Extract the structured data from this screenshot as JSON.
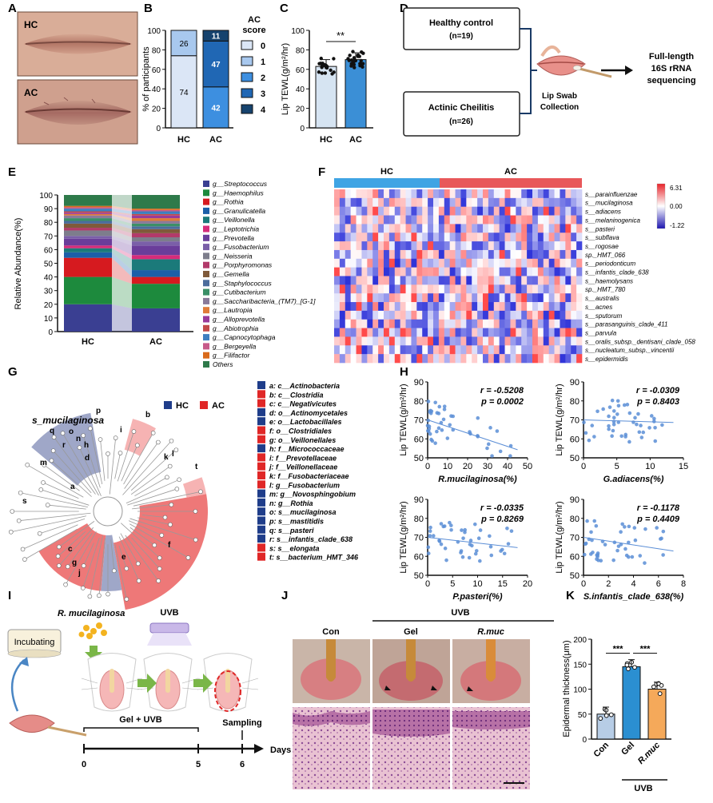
{
  "panel_letters": [
    "A",
    "B",
    "C",
    "D",
    "E",
    "F",
    "G",
    "H",
    "I",
    "J",
    "K"
  ],
  "A": {
    "top_label": "HC",
    "bottom_label": "AC"
  },
  "B": {
    "chart_data": {
      "type": "bar",
      "categories": [
        "HC",
        "AC"
      ],
      "ylabel": "% of participants",
      "ylim": [
        0,
        100
      ],
      "yticks": [
        "0",
        "20",
        "40",
        "60",
        "80",
        "100"
      ],
      "legend_title": "AC\nscore",
      "legend_title_lines": [
        "AC",
        "score"
      ],
      "legend": [
        "0",
        "1",
        "2",
        "3",
        "4"
      ],
      "colors": [
        "#dbe6f6",
        "#a8c8ee",
        "#3d8fe0",
        "#2067b4",
        "#16436e"
      ],
      "series": [
        {
          "name": "0",
          "values": [
            74,
            0
          ]
        },
        {
          "name": "1",
          "values": [
            26,
            0
          ]
        },
        {
          "name": "2",
          "values": [
            0,
            42
          ]
        },
        {
          "name": "3",
          "values": [
            0,
            47
          ]
        },
        {
          "name": "4",
          "values": [
            0,
            11
          ]
        }
      ],
      "labels": {
        "HC": [
          "74",
          "26"
        ],
        "AC": [
          "42",
          "47",
          "11"
        ]
      }
    }
  },
  "C": {
    "chart_data": {
      "type": "bar",
      "categories": [
        "HC",
        "AC"
      ],
      "values": [
        63,
        70
      ],
      "ylabel": "Lip TEWL(g/m²/hr)",
      "ylim": [
        0,
        100
      ],
      "yticks": [
        "0",
        "20",
        "40",
        "60",
        "80",
        "100"
      ],
      "significance": "**"
    }
  },
  "D": {
    "box1_line1": "Healthy control",
    "box1_line2": "(n=19)",
    "box2_line1": "Actinic Cheilitis",
    "box2_line2": "(n=26)",
    "swab_line1": "Lip Swab",
    "swab_line2": "Collection",
    "seq_line1": "Full-length",
    "seq_line2": "16S rRNA",
    "seq_line3": "sequencing"
  },
  "E": {
    "chart_data": {
      "type": "bar",
      "categories": [
        "HC",
        "AC"
      ],
      "ylabel": "Relative Abundance(%)",
      "ylim": [
        0,
        100
      ],
      "yticks": [
        "0",
        "10",
        "20",
        "30",
        "40",
        "50",
        "60",
        "70",
        "80",
        "90",
        "100"
      ],
      "series": [
        {
          "name": "g__Streptococcus",
          "values": [
            20,
            17
          ]
        },
        {
          "name": "g__Haemophilus",
          "values": [
            20,
            18
          ]
        },
        {
          "name": "g__Rothia",
          "values": [
            14,
            5
          ]
        },
        {
          "name": "g__Granulicatella",
          "values": [
            4,
            5
          ]
        },
        {
          "name": "g__Veillonella",
          "values": [
            3,
            8
          ]
        },
        {
          "name": "g__Leptotrichia",
          "values": [
            2,
            3
          ]
        },
        {
          "name": "g__Prevotella",
          "values": [
            5,
            7
          ]
        },
        {
          "name": "g__Fusobacterium",
          "values": [
            2,
            3
          ]
        },
        {
          "name": "g__Neisseria",
          "values": [
            4,
            3
          ]
        },
        {
          "name": "g__Porphyromonas",
          "values": [
            2,
            3
          ]
        },
        {
          "name": "g__Gemella",
          "values": [
            3,
            3
          ]
        },
        {
          "name": "g__Staphylococcus",
          "values": [
            2,
            2
          ]
        },
        {
          "name": "g__Cutibacterium",
          "values": [
            2,
            2
          ]
        },
        {
          "name": "g__Saccharibacteria_(TM7)_[G-1]",
          "values": [
            2,
            2
          ]
        },
        {
          "name": "g__Lautropia",
          "values": [
            1,
            2
          ]
        },
        {
          "name": "g__Alloprevotella",
          "values": [
            1,
            2
          ]
        },
        {
          "name": "g__Abiotrophia",
          "values": [
            1,
            1
          ]
        },
        {
          "name": "g__Capnocytophaga",
          "values": [
            2,
            2
          ]
        },
        {
          "name": "g__Bergeyella",
          "values": [
            1,
            1
          ]
        },
        {
          "name": "g__Filifactor",
          "values": [
            1,
            1
          ]
        },
        {
          "name": "Others",
          "values": [
            8,
            10
          ]
        }
      ],
      "colors": [
        "#3a3f92",
        "#1d8a3d",
        "#d61a1f",
        "#1c5fa8",
        "#1b7a7a",
        "#d62c7a",
        "#6a3d9a",
        "#7a5fa8",
        "#7d7d8c",
        "#b23a6a",
        "#7f5a3a",
        "#4c6c9c",
        "#3b8f67",
        "#8a7a9a",
        "#e07b39",
        "#9a3a9a",
        "#c24a4a",
        "#3e7fc0",
        "#c75a8a",
        "#d96a1a",
        "#2e7a4a"
      ]
    }
  },
  "F": {
    "group_hc": "HC",
    "group_ac": "AC",
    "scale_max": "6.31",
    "scale_mid": "0.00",
    "scale_min": "-1.22",
    "species": [
      "s__parainfluenzae",
      "s__mucilaginosa",
      "s__adiacens",
      "s__melaninogenica",
      "s__pasteri",
      "s__subflava",
      "s__rogosae",
      "sp._HMT_066",
      "s__periodonticum",
      "s__infantis_clade_638",
      "s__haemolysans",
      "sp._HMT_780",
      "s__australis",
      "s__acnes",
      "s__sputorum",
      "s__parasanguinis_clade_411",
      "s__parvula",
      "s__oralis_subsp._dentisani_clade_058",
      "s__nucleatum_subsp._vincentii",
      "s__epidermidis"
    ]
  },
  "G": {
    "legend_hc": "HC",
    "legend_ac": "AC",
    "highlight_label": "s_mucilaginosa",
    "entries": [
      {
        "key": "a",
        "text": "a: c__Actinobacteria",
        "group": "HC"
      },
      {
        "key": "b",
        "text": "b: c__Clostridia",
        "group": "AC"
      },
      {
        "key": "c",
        "text": "c: c__Negativicutes",
        "group": "AC"
      },
      {
        "key": "d",
        "text": "d: o__Actinomycetales",
        "group": "HC"
      },
      {
        "key": "e",
        "text": "e: o__Lactobacillales",
        "group": "HC"
      },
      {
        "key": "f",
        "text": "f: o__Clostridiales",
        "group": "AC"
      },
      {
        "key": "g",
        "text": "g: o__Veillonellales",
        "group": "AC"
      },
      {
        "key": "h",
        "text": "h: f__Micrococcaceae",
        "group": "HC"
      },
      {
        "key": "i",
        "text": "i: f__Prevotellaceae",
        "group": "AC"
      },
      {
        "key": "j",
        "text": "j: f__Veillonellaceae",
        "group": "AC"
      },
      {
        "key": "k",
        "text": "k: f__Fusobacteriaceae",
        "group": "AC"
      },
      {
        "key": "l",
        "text": "l: g__Fusobacterium",
        "group": "AC"
      },
      {
        "key": "m",
        "text": "m: g__Novosphingobium",
        "group": "HC"
      },
      {
        "key": "n",
        "text": "n: g__Rothia",
        "group": "HC"
      },
      {
        "key": "o",
        "text": "o: s__mucilaginosa",
        "group": "HC"
      },
      {
        "key": "p",
        "text": "p: s__mastitidis",
        "group": "HC"
      },
      {
        "key": "q",
        "text": "q: s__pasteri",
        "group": "HC"
      },
      {
        "key": "r",
        "text": "r: s__infantis_clade_638",
        "group": "HC"
      },
      {
        "key": "s",
        "text": "s: s__elongata",
        "group": "AC"
      },
      {
        "key": "t",
        "text": "t: s__bacterium_HMT_346",
        "group": "AC"
      }
    ]
  },
  "H": {
    "ylabel": "Lip TEWL(g/m²/hr)",
    "yticks": [
      "50",
      "60",
      "70",
      "80",
      "90"
    ],
    "plots": [
      {
        "xlabel": "R.mucilaginosa(%)",
        "r": "r = -0.5208",
        "p": "p = 0.0002",
        "xticks": [
          "0",
          "10",
          "20",
          "30",
          "40",
          "50"
        ],
        "xmax": 50
      },
      {
        "xlabel": "G.adiacens(%)",
        "r": "r = -0.0309",
        "p": "p = 0.8403",
        "xticks": [
          "0",
          "5",
          "10",
          "15"
        ],
        "xmax": 15
      },
      {
        "xlabel": "P.pasteri(%)",
        "r": "r = -0.0335",
        "p": "p = 0.8269",
        "xticks": [
          "0",
          "5",
          "10",
          "15",
          "20"
        ],
        "xmax": 20
      },
      {
        "xlabel": "S.infantis_clade_638(%)",
        "r": "r = -0.1178",
        "p": "p = 0.4409",
        "xticks": [
          "0",
          "2",
          "4",
          "6",
          "8"
        ],
        "xmax": 8
      }
    ]
  },
  "I": {
    "species": "R. mucilaginosa",
    "incubating": "Incubating",
    "uvb": "UVB",
    "gel_uvb": "Gel + UVB",
    "sampling": "Sampling",
    "days_label": "Days",
    "day_ticks": [
      "0",
      "5",
      "6"
    ]
  },
  "J": {
    "uvb": "UVB",
    "col1": "Con",
    "col2": "Gel",
    "col3": "R.muc"
  },
  "K": {
    "chart_data": {
      "type": "bar",
      "categories": [
        "Con",
        "Gel",
        "R.muc"
      ],
      "values": [
        50,
        145,
        100
      ],
      "ylabel": "Epidermal thickness(μm)",
      "ylim": [
        0,
        200
      ],
      "yticks": [
        "0",
        "50",
        "100",
        "150",
        "200"
      ],
      "significance": [
        "***",
        "***"
      ],
      "group_label": "UVB",
      "colors": [
        "#b7cde6",
        "#2b8fd1",
        "#f5a95a"
      ]
    }
  }
}
